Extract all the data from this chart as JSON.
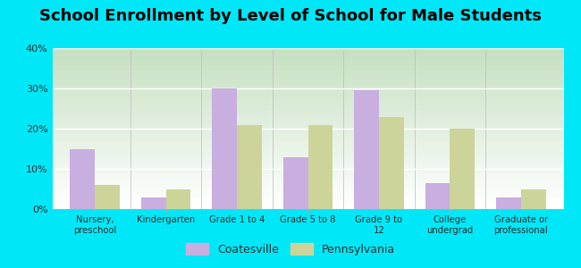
{
  "title": "School Enrollment by Level of School for Male Students",
  "categories": [
    "Nursery,\npreschool",
    "Kindergarten",
    "Grade 1 to 4",
    "Grade 5 to 8",
    "Grade 9 to\n12",
    "College\nundergrad",
    "Graduate or\nprofessional"
  ],
  "coatesville": [
    15,
    3,
    30,
    13,
    29.5,
    6.5,
    3
  ],
  "pennsylvania": [
    6,
    5,
    21,
    21,
    23,
    20,
    5
  ],
  "bar_color_coatesville": "#c9aee0",
  "bar_color_pennsylvania": "#cdd49a",
  "background_color": "#00e8f8",
  "grad_top": "#c5dfc0",
  "grad_bottom": "#ffffff",
  "ylim": [
    0,
    40
  ],
  "yticks": [
    0,
    10,
    20,
    30,
    40
  ],
  "ytick_labels": [
    "0%",
    "10%",
    "20%",
    "30%",
    "40%"
  ],
  "title_fontsize": 13,
  "legend_label_coatesville": "Coatesville",
  "legend_label_pennsylvania": "Pennsylvania",
  "bar_width": 0.35
}
